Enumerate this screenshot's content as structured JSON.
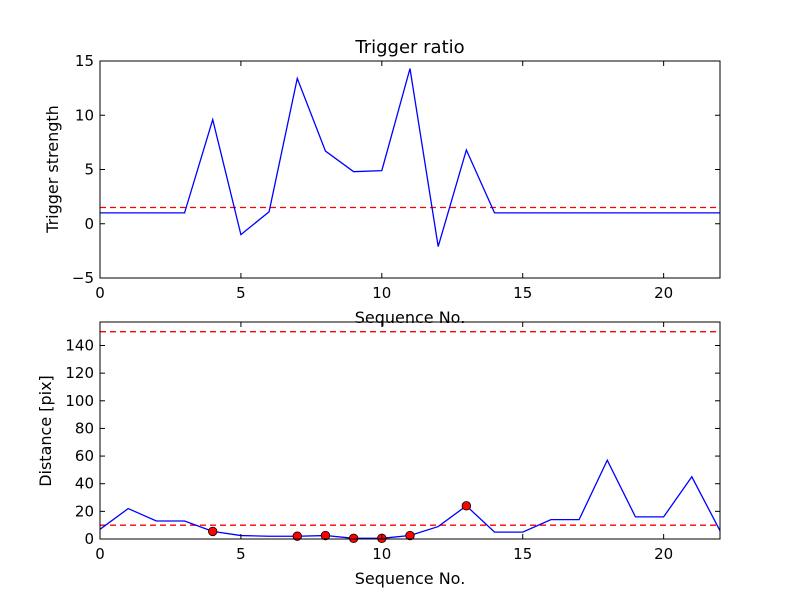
{
  "chart_data": [
    {
      "type": "line",
      "title": "Trigger ratio",
      "xlabel": "Sequence No.",
      "ylabel": "Trigger strength",
      "xlim": [
        0,
        22
      ],
      "ylim": [
        -5,
        15
      ],
      "xticks": [
        0,
        5,
        10,
        15,
        20
      ],
      "yticks": [
        -5,
        0,
        5,
        10,
        15
      ],
      "grid": false,
      "series": [
        {
          "color": "#0000ff",
          "style": "solid",
          "x": [
            0,
            1,
            2,
            3,
            4,
            5,
            6,
            7,
            8,
            9,
            10,
            11,
            12,
            13,
            14,
            15,
            16,
            17,
            18,
            19,
            20,
            21,
            22
          ],
          "y": [
            1.0,
            1.0,
            1.0,
            1.0,
            9.6,
            -1.0,
            1.1,
            13.4,
            6.7,
            4.8,
            4.9,
            14.3,
            -2.1,
            6.8,
            1.0,
            1.0,
            1.0,
            1.0,
            1.0,
            1.0,
            1.0,
            1.0,
            1.0
          ]
        }
      ],
      "hlines": [
        {
          "y": 1.5,
          "color": "#ff0000",
          "style": "dashed"
        }
      ]
    },
    {
      "type": "line",
      "title": "",
      "xlabel": "Sequence No.",
      "ylabel": "Distance [pix]",
      "xlim": [
        0,
        22
      ],
      "ylim": [
        0,
        157
      ],
      "xticks": [
        0,
        5,
        10,
        15,
        20
      ],
      "yticks": [
        0,
        20,
        40,
        60,
        80,
        100,
        120,
        140
      ],
      "grid": false,
      "series": [
        {
          "color": "#0000ff",
          "style": "solid",
          "x": [
            0,
            1,
            2,
            3,
            4,
            5,
            6,
            7,
            8,
            9,
            10,
            11,
            12,
            13,
            14,
            15,
            16,
            17,
            18,
            19,
            20,
            21,
            22
          ],
          "y": [
            7,
            22,
            13,
            13,
            5.5,
            2.5,
            2,
            2,
            2.5,
            0.5,
            0.5,
            2.5,
            9,
            24,
            5,
            5,
            14,
            14,
            57,
            16,
            16,
            45,
            6
          ]
        }
      ],
      "markers": {
        "color": "#ff0000",
        "x": [
          4,
          7,
          8,
          9,
          10,
          11,
          13
        ],
        "y": [
          5.5,
          2,
          2.5,
          0.5,
          0.5,
          2.5,
          24
        ]
      },
      "hlines": [
        {
          "y": 10,
          "color": "#ff0000",
          "style": "dashed"
        },
        {
          "y": 150,
          "color": "#ff0000",
          "style": "dashed"
        }
      ]
    }
  ]
}
